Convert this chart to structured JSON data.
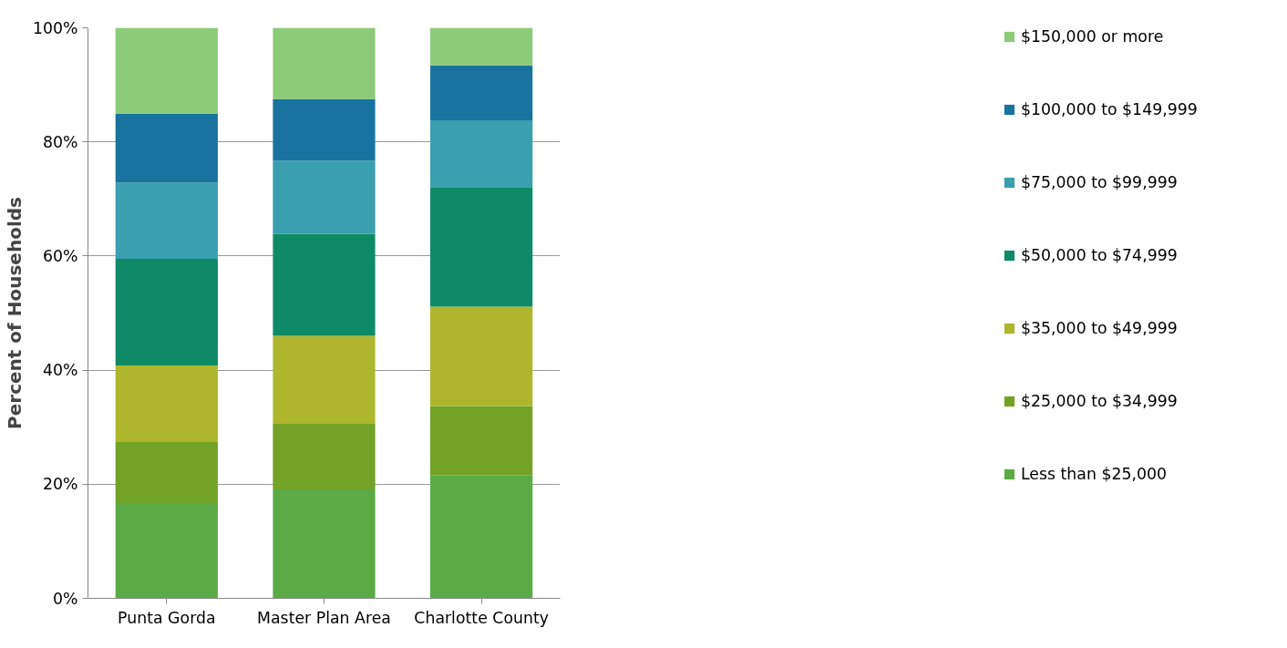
{
  "chart_data": {
    "type": "bar",
    "stacked": true,
    "ylabel": "Percent of Households",
    "categories": [
      "Punta Gorda",
      "Master Plan Area",
      "Charlotte County"
    ],
    "ylim": [
      0,
      100
    ],
    "yticks": [
      {
        "value": 0,
        "label": "0%"
      },
      {
        "value": 20,
        "label": "20%"
      },
      {
        "value": 40,
        "label": "40%"
      },
      {
        "value": 60,
        "label": "60%"
      },
      {
        "value": 80,
        "label": "80%"
      },
      {
        "value": 100,
        "label": "100%"
      }
    ],
    "grid": "y",
    "legend": "right",
    "series": [
      {
        "name": "Less than $25,000",
        "color": "#5aab45",
        "values": [
          16.7,
          19.1,
          21.6
        ]
      },
      {
        "name": "$25,000 to $34,999",
        "color": "#72a226",
        "values": [
          10.7,
          11.5,
          12.1
        ]
      },
      {
        "name": "$35,000 to $49,999",
        "color": "#adb62c",
        "values": [
          13.4,
          15.4,
          17.4
        ]
      },
      {
        "name": "$50,000 to $74,999",
        "color": "#0f8a66",
        "values": [
          18.7,
          17.9,
          21.0
        ]
      },
      {
        "name": "$75,000 to $99,999",
        "color": "#3a9fae",
        "values": [
          13.4,
          12.8,
          11.7
        ]
      },
      {
        "name": "$100,000 to $149,999",
        "color": "#18749e",
        "values": [
          12.0,
          10.8,
          9.6
        ]
      },
      {
        "name": "$150,000 or more",
        "color": "#8ccb78",
        "values": [
          15.1,
          12.5,
          6.6
        ]
      }
    ]
  }
}
